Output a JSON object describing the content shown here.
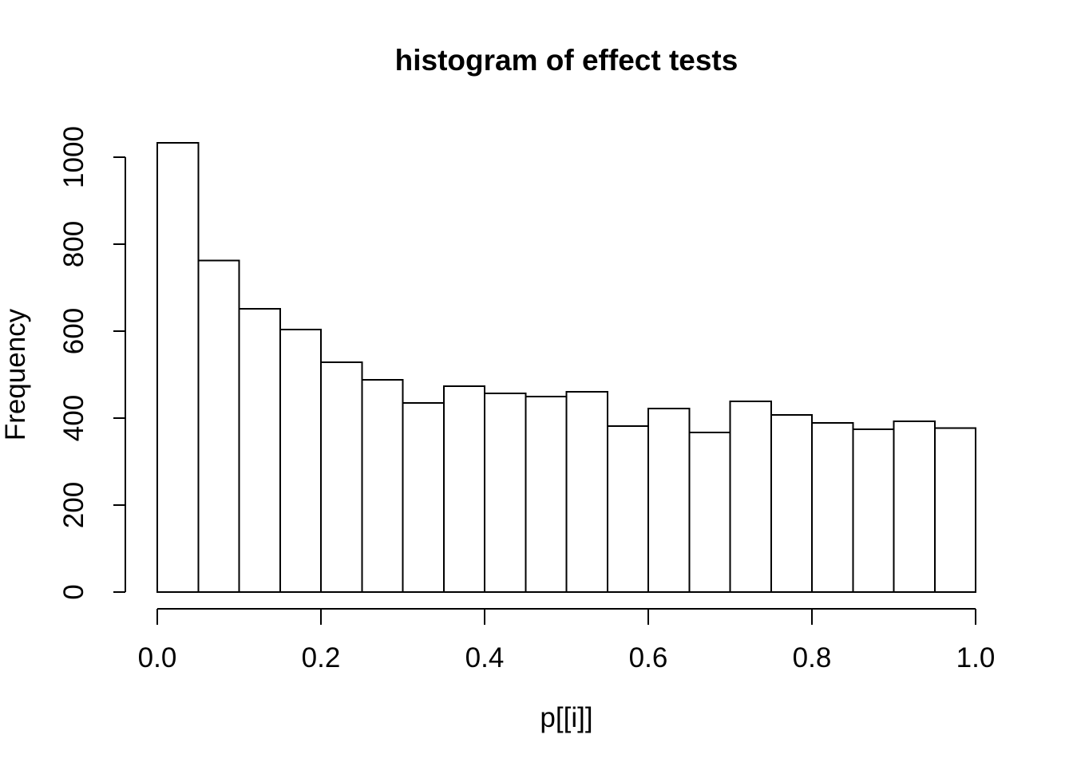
{
  "figure": {
    "background": "#ffffff",
    "foreground": "#000000"
  },
  "chart_data": {
    "type": "bar",
    "subtype": "histogram",
    "title": "histogram of effect tests",
    "xlabel": "p[[i]]",
    "ylabel": "Frequency",
    "bin_edges": [
      0,
      0.05,
      0.1,
      0.15,
      0.2,
      0.25,
      0.3,
      0.35,
      0.4,
      0.45,
      0.5,
      0.55,
      0.6,
      0.65,
      0.7,
      0.75,
      0.8,
      0.85,
      0.9,
      0.95,
      1.0
    ],
    "values": [
      1033,
      762,
      651,
      604,
      528,
      488,
      435,
      473,
      457,
      450,
      461,
      382,
      422,
      367,
      439,
      407,
      389,
      374,
      393,
      377
    ],
    "xlim": [
      0,
      1
    ],
    "ylim": [
      0,
      1000
    ],
    "x_ticks": {
      "values": [
        0,
        0.2,
        0.4,
        0.6,
        0.8,
        1.0
      ],
      "labels": [
        "0.0",
        "0.2",
        "0.4",
        "0.6",
        "0.8",
        "1.0"
      ]
    },
    "y_ticks": {
      "values": [
        0,
        200,
        400,
        600,
        800,
        1000
      ],
      "labels": [
        "0",
        "200",
        "400",
        "600",
        "800",
        "1000"
      ]
    },
    "grid": false,
    "legend": "none",
    "bar_fill": "#ffffff",
    "bar_stroke": "#000000",
    "axis_color": "#000000"
  }
}
